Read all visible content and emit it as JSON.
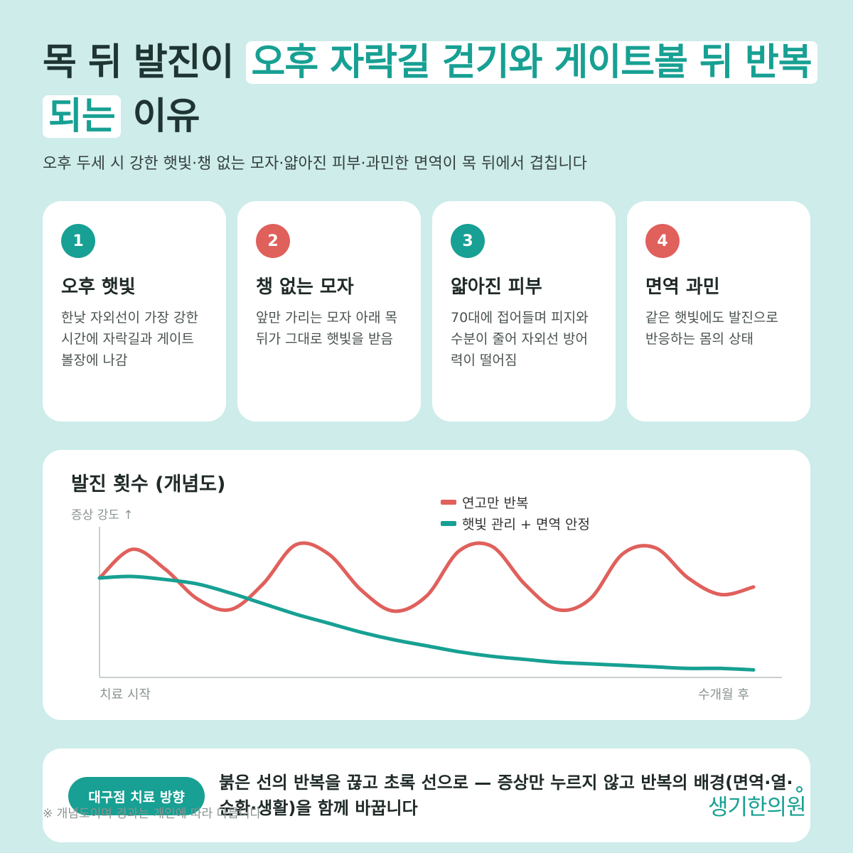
{
  "title": {
    "part1": "목 뒤 발진이",
    "highlight": "오후 자락길 걷기와 게이트볼 뒤 반복되는",
    "part2": "이유"
  },
  "subtitle": "오후 두세 시 강한 햇빛·챙 없는 모자·얇아진 피부·과민한 면역이 목 뒤에서 겹칩니다",
  "cards": [
    {
      "num": "1",
      "title": "오후 햇빛",
      "desc": "한낮 자외선이 가장 강한 시간에 자락길과 게이트볼장에 나감",
      "color": "#17a093"
    },
    {
      "num": "2",
      "title": "챙 없는 모자",
      "desc": "앞만 가리는 모자 아래 목 뒤가 그대로 햇빛을 받음",
      "color": "#e0605c"
    },
    {
      "num": "3",
      "title": "얇아진 피부",
      "desc": "70대에 접어들며 피지와 수분이 줄어 자외선 방어력이 떨어짐",
      "color": "#17a093"
    },
    {
      "num": "4",
      "title": "면역 과민",
      "desc": "같은 햇빛에도 발진으로 반응하는 몸의 상태",
      "color": "#e0605c"
    }
  ],
  "chart": {
    "title": "발진 횟수 (개념도)",
    "ylabel": "증상 강도 ↑",
    "x_start": "치료 시작",
    "x_end": "수개월 후"
  },
  "chart_data": {
    "type": "line",
    "title": "발진 횟수 (개념도)",
    "ylabel": "증상 강도 ↑",
    "xlabel": "",
    "x": [
      0,
      0.05,
      0.1,
      0.15,
      0.2,
      0.25,
      0.3,
      0.35,
      0.4,
      0.45,
      0.5,
      0.55,
      0.6,
      0.65,
      0.7,
      0.75,
      0.8,
      0.85,
      0.9,
      0.95,
      1.0
    ],
    "x_tick_labels": [
      "치료 시작",
      "수개월 후"
    ],
    "ylim": [
      0,
      1
    ],
    "grid": false,
    "legend": "top-center",
    "series": [
      {
        "name": "연고만 반복",
        "color": "#e0605c",
        "values": [
          0.66,
          0.85,
          0.72,
          0.52,
          0.45,
          0.62,
          0.88,
          0.82,
          0.58,
          0.44,
          0.54,
          0.84,
          0.87,
          0.62,
          0.45,
          0.52,
          0.82,
          0.86,
          0.66,
          0.55,
          0.6
        ]
      },
      {
        "name": "햇빛 관리 + 면역 안정",
        "color": "#17a093",
        "values": [
          0.66,
          0.67,
          0.65,
          0.62,
          0.56,
          0.49,
          0.42,
          0.36,
          0.3,
          0.25,
          0.21,
          0.17,
          0.14,
          0.12,
          0.1,
          0.09,
          0.08,
          0.07,
          0.06,
          0.06,
          0.05
        ]
      }
    ]
  },
  "bottom": {
    "badge": "대구점 치료 방향",
    "text": "붉은 선의 반복을 끊고 초록 선으로 — 증상만 누르지 않고 반복의 배경(면역·열·순환·생활)을 함께 바꿉니다",
    "note": "※ 개념도이며 경과는 개인에 따라 다릅니다",
    "logo": "생기한의원"
  }
}
